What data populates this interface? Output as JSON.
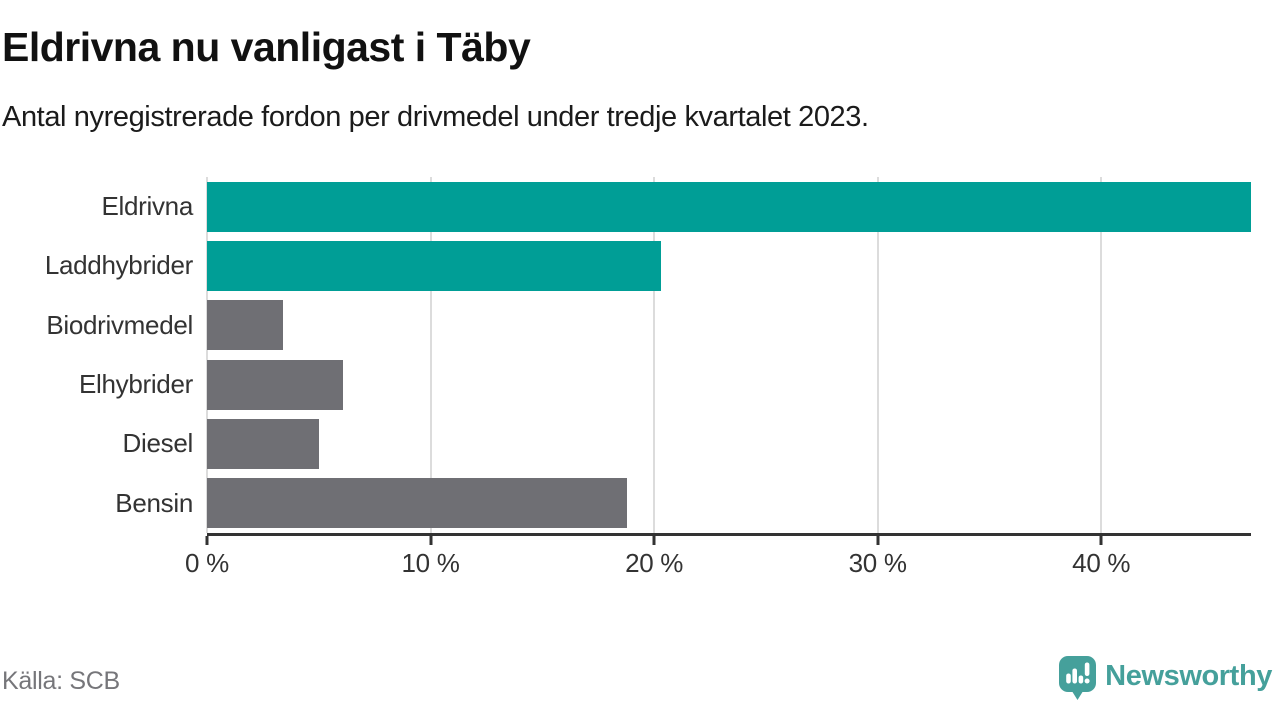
{
  "chart_data": {
    "type": "bar",
    "orientation": "horizontal",
    "title": "Eldrivna nu vanligast i Täby",
    "subtitle": "Antal nyregistrerade fordon per drivmedel under tredje kvartalet 2023.",
    "categories": [
      "Eldrivna",
      "Laddhybrider",
      "Biodrivmedel",
      "Elhybrider",
      "Diesel",
      "Bensin"
    ],
    "values": [
      46.7,
      20.3,
      3.4,
      6.1,
      5.0,
      18.8
    ],
    "unit": "%",
    "xlim": [
      0,
      46.7
    ],
    "x_ticks": [
      0,
      10,
      20,
      30,
      40
    ],
    "x_tick_labels": [
      "0 %",
      "10 %",
      "20 %",
      "30 %",
      "40 %"
    ],
    "grid": "vertical-only",
    "legend": "none",
    "bar_colors": [
      "#009E96",
      "#009E96",
      "#6F6F74",
      "#6F6F74",
      "#6F6F74",
      "#6F6F74"
    ],
    "highlight_color": "#009E96",
    "default_color": "#6F6F74"
  },
  "footer": {
    "source": "Källa: SCB",
    "logo_text": "Newsworthy"
  },
  "colors": {
    "gridline": "#dcdcdc",
    "axis": "#333333",
    "label_text": "#333333",
    "source_text": "#76767a",
    "logo_teal": "#45A09B"
  }
}
